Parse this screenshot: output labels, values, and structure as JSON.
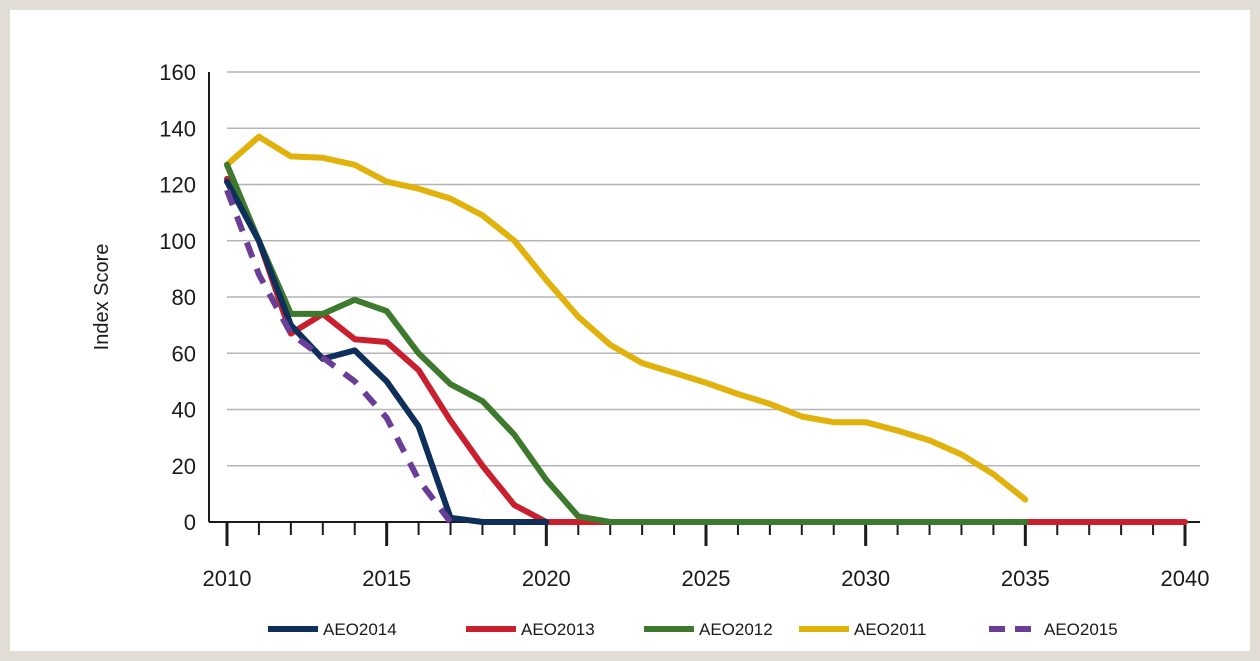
{
  "chart_data": {
    "type": "line",
    "title": "",
    "xlabel": "",
    "ylabel": "Index Score",
    "xlim": [
      2010,
      2040
    ],
    "ylim": [
      0,
      160
    ],
    "x_ticks": [
      "2010",
      "2015",
      "2020",
      "2025",
      "2030",
      "2035",
      "2040"
    ],
    "y_ticks": [
      "0",
      "20",
      "40",
      "60",
      "80",
      "100",
      "120",
      "140",
      "160"
    ],
    "grid": "horizontal",
    "legend_position": "bottom",
    "series": [
      {
        "name": "AEO2014",
        "color": "#0d2f5a",
        "dash": false,
        "x": [
          2010,
          2011,
          2012,
          2013,
          2014,
          2015,
          2016,
          2017,
          2018,
          2019,
          2020
        ],
        "y": [
          121,
          100,
          70,
          58,
          61,
          50,
          34,
          1.5,
          0,
          0,
          0
        ]
      },
      {
        "name": "AEO2013",
        "color": "#c8202f",
        "dash": false,
        "x": [
          2010,
          2011,
          2012,
          2013,
          2014,
          2015,
          2016,
          2017,
          2018,
          2019,
          2020,
          2021,
          2022,
          2023,
          2024,
          2025,
          2026,
          2027,
          2028,
          2029,
          2030,
          2031,
          2032,
          2033,
          2034,
          2035,
          2036,
          2037,
          2038,
          2039,
          2040
        ],
        "y": [
          122,
          100,
          67,
          74,
          65,
          64,
          54,
          36,
          20,
          6,
          0,
          0,
          0,
          0,
          0,
          0,
          0,
          0,
          0,
          0,
          0,
          0,
          0,
          0,
          0,
          0,
          0,
          0,
          0,
          0,
          0
        ]
      },
      {
        "name": "AEO2012",
        "color": "#3d7a2e",
        "dash": false,
        "x": [
          2010,
          2011,
          2012,
          2013,
          2014,
          2015,
          2016,
          2017,
          2018,
          2019,
          2020,
          2021,
          2022,
          2023,
          2024,
          2025,
          2026,
          2027,
          2028,
          2029,
          2030,
          2031,
          2032,
          2033,
          2034,
          2035
        ],
        "y": [
          127,
          100,
          74,
          74,
          79,
          75,
          60,
          49,
          43,
          31,
          15,
          2,
          0,
          0,
          0,
          0,
          0,
          0,
          0,
          0,
          0,
          0,
          0,
          0,
          0,
          0
        ]
      },
      {
        "name": "AEO2011",
        "color": "#e0b20b",
        "dash": false,
        "x": [
          2010,
          2011,
          2012,
          2013,
          2014,
          2015,
          2016,
          2017,
          2018,
          2019,
          2020,
          2021,
          2022,
          2023,
          2024,
          2025,
          2026,
          2027,
          2028,
          2029,
          2030,
          2031,
          2032,
          2033,
          2034,
          2035
        ],
        "y": [
          127,
          137,
          130,
          129.5,
          127,
          121,
          118.5,
          115,
          109,
          100,
          86,
          73,
          63,
          56.5,
          53,
          49.5,
          45.5,
          42,
          37.5,
          35.5,
          35.5,
          32.5,
          29,
          24,
          17,
          8
        ]
      },
      {
        "name": "AEO2015",
        "color": "#6a3d97",
        "dash": true,
        "x": [
          2010,
          2011,
          2012,
          2013,
          2014,
          2015,
          2016,
          2017
        ],
        "y": [
          118,
          88,
          67,
          58.5,
          50,
          37,
          15,
          0
        ]
      }
    ]
  }
}
